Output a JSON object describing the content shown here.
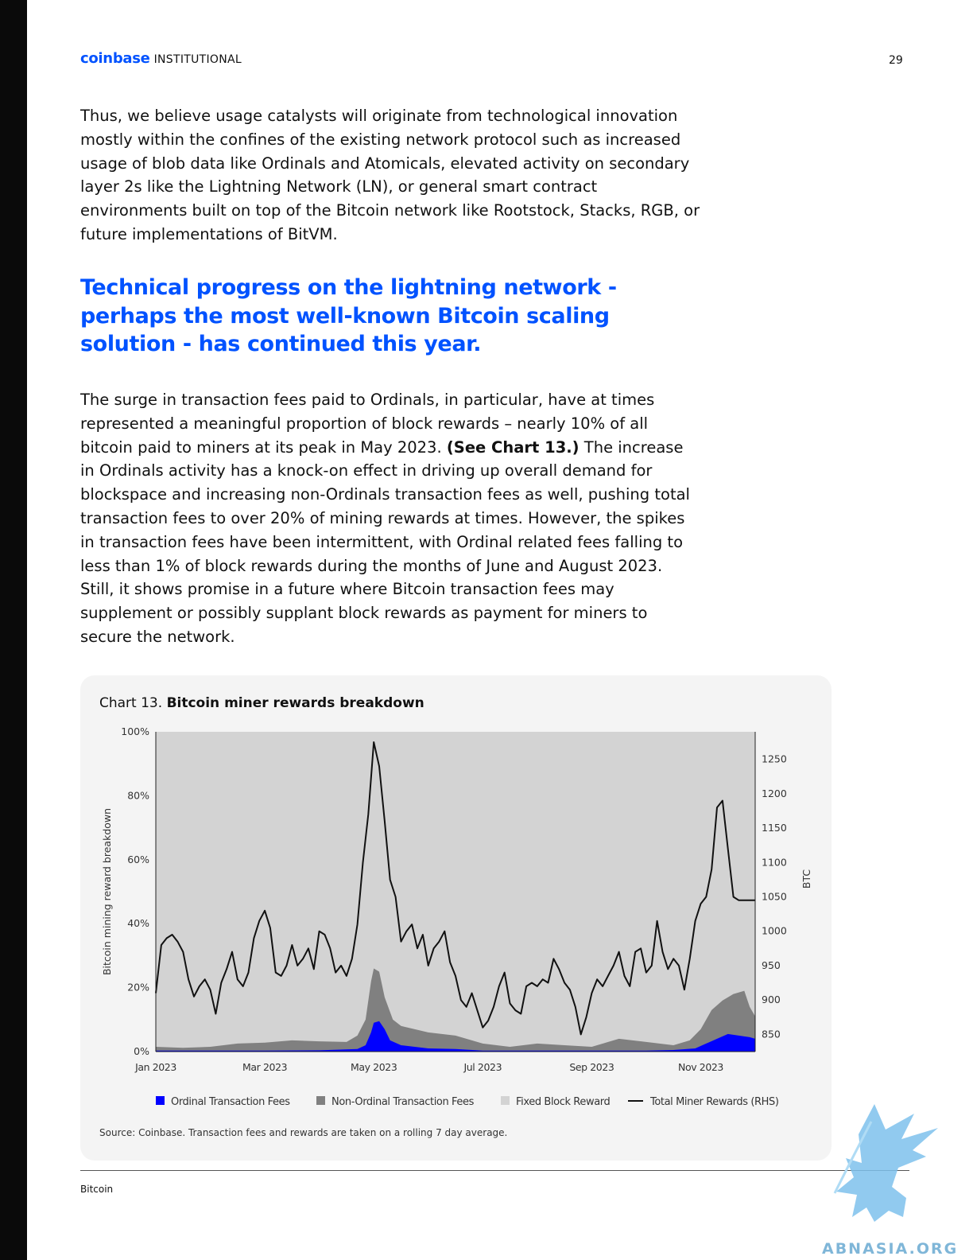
{
  "header": {
    "brand": "coinbase",
    "brand_suffix": "INSTITUTIONAL",
    "page_number": "29"
  },
  "intro_paragraph": "Thus, we believe usage catalysts will originate from technological innovation mostly within the confines of the existing network protocol such as increased usage of blob data like Ordinals and Atomicals, elevated activity on secondary layer 2s like the Lightning Network (LN), or general smart contract environments built on top of the Bitcoin network like Rootstock, Stacks, RGB, or future implementations of BitVM.",
  "section_heading": "Technical progress on the lightning network - perhaps the most well-known Bitcoin scaling solution - has continued this year.",
  "body_paragraph": {
    "part1": "The surge in transaction fees paid to Ordinals, in particular, have at times represented a meaningful proportion of block rewards – nearly 10% of all bitcoin paid to miners at its peak in May 2023. ",
    "bold": "(See Chart 13.)",
    "part2": " The increase in Ordinals activity has a knock-on effect in driving up overall demand for blockspace and increasing non-Ordinals transaction fees as well, pushing total transaction fees to over 20% of mining rewards at times. However, the spikes in transaction fees have been intermittent, with Ordinal related fees falling to less than 1% of block rewards during the months of June and August 2023. Still, it shows promise in a future where Bitcoin transaction fees may supplement or possibly supplant block rewards as payment for miners to secure the network."
  },
  "chart_card": {
    "label": "Chart 13.",
    "title": "Bitcoin miner rewards breakdown",
    "source": "Source: Coinbase. Transaction fees and rewards are taken on a rolling 7 day average."
  },
  "chart_data": {
    "type": "area",
    "ylabel": "Bitcoin mining reward breakdown",
    "y2label": "BTC",
    "ylim": [
      0,
      100
    ],
    "y_ticks": [
      "0%",
      "20%",
      "40%",
      "60%",
      "80%",
      "100%"
    ],
    "y2lim": [
      825,
      1290
    ],
    "y2_ticks": [
      850,
      900,
      950,
      1000,
      1050,
      1100,
      1150,
      1200,
      1250
    ],
    "x_ticks": [
      "Jan 2023",
      "Mar 2023",
      "May 2023",
      "Jul 2023",
      "Sep 2023",
      "Nov 2023"
    ],
    "x_tick_positions": [
      0,
      2,
      4,
      6,
      8,
      10
    ],
    "x_max": 11.0,
    "grid": false,
    "legend_position": "bottom",
    "colors": {
      "ordinal": "#0000ff",
      "non_ordinal": "#808080",
      "fixed": "#d3d3d3",
      "total": "#111111"
    },
    "series": [
      {
        "name": "Ordinal Transaction Fees",
        "unit": "% of rewards",
        "x": [
          0,
          1.0,
          2.0,
          3.0,
          3.7,
          3.85,
          3.95,
          4.0,
          4.1,
          4.2,
          4.3,
          4.5,
          5.0,
          5.5,
          6.0,
          6.5,
          7.0,
          7.5,
          8.0,
          8.5,
          9.0,
          9.5,
          9.9,
          10.1,
          10.3,
          10.5,
          10.7,
          10.9,
          11.0
        ],
        "values": [
          0.3,
          0.3,
          0.3,
          0.4,
          0.8,
          2.0,
          6.0,
          9.0,
          9.5,
          7.0,
          3.5,
          2.0,
          1.0,
          0.8,
          0.3,
          0.3,
          0.3,
          0.3,
          0.3,
          0.3,
          0.3,
          0.5,
          1.0,
          2.5,
          4.0,
          5.5,
          5.0,
          4.5,
          4.0
        ]
      },
      {
        "name": "Non-Ordinal Transaction Fees",
        "unit": "% of rewards (cumulative top)",
        "x": [
          0,
          0.5,
          1.0,
          1.5,
          2.0,
          2.5,
          3.0,
          3.5,
          3.7,
          3.85,
          3.95,
          4.0,
          4.1,
          4.2,
          4.35,
          4.5,
          5.0,
          5.5,
          6.0,
          6.5,
          7.0,
          7.5,
          8.0,
          8.5,
          9.0,
          9.5,
          9.8,
          10.0,
          10.2,
          10.4,
          10.6,
          10.8,
          10.9,
          11.0
        ],
        "values": [
          1.5,
          1.2,
          1.5,
          2.5,
          2.8,
          3.5,
          3.2,
          3.0,
          5.0,
          10.0,
          22.0,
          26.0,
          25.0,
          17.0,
          10.0,
          8.0,
          6.0,
          5.0,
          2.5,
          1.5,
          2.5,
          2.0,
          1.5,
          4.0,
          3.0,
          2.0,
          3.5,
          7.0,
          13.0,
          16.0,
          18.0,
          19.0,
          14.0,
          11.0
        ]
      },
      {
        "name": "Fixed Block Reward",
        "unit": "% of rewards (remainder to 100%)"
      },
      {
        "name": "Total Miner Rewards (RHS)",
        "unit": "BTC",
        "x": [
          0,
          0.1,
          0.2,
          0.3,
          0.4,
          0.5,
          0.6,
          0.7,
          0.8,
          0.9,
          1.0,
          1.1,
          1.2,
          1.3,
          1.4,
          1.5,
          1.6,
          1.7,
          1.8,
          1.9,
          2.0,
          2.1,
          2.2,
          2.3,
          2.4,
          2.5,
          2.6,
          2.7,
          2.8,
          2.9,
          3.0,
          3.1,
          3.2,
          3.3,
          3.4,
          3.5,
          3.6,
          3.7,
          3.8,
          3.9,
          4.0,
          4.1,
          4.2,
          4.3,
          4.4,
          4.5,
          4.6,
          4.7,
          4.8,
          4.9,
          5.0,
          5.1,
          5.2,
          5.3,
          5.4,
          5.5,
          5.6,
          5.7,
          5.8,
          5.9,
          6.0,
          6.1,
          6.2,
          6.3,
          6.4,
          6.5,
          6.6,
          6.7,
          6.8,
          6.9,
          7.0,
          7.1,
          7.2,
          7.3,
          7.4,
          7.5,
          7.6,
          7.7,
          7.8,
          7.9,
          8.0,
          8.1,
          8.2,
          8.3,
          8.4,
          8.5,
          8.6,
          8.7,
          8.8,
          8.9,
          9.0,
          9.1,
          9.2,
          9.3,
          9.4,
          9.5,
          9.6,
          9.7,
          9.8,
          9.9,
          10.0,
          10.1,
          10.2,
          10.3,
          10.4,
          10.5,
          10.6,
          10.7,
          10.8,
          10.9,
          11.0
        ],
        "values": [
          910,
          980,
          990,
          995,
          985,
          970,
          930,
          905,
          920,
          930,
          915,
          880,
          925,
          945,
          970,
          930,
          920,
          940,
          990,
          1015,
          1030,
          1005,
          940,
          935,
          950,
          980,
          950,
          960,
          975,
          945,
          1000,
          995,
          975,
          940,
          950,
          935,
          960,
          1010,
          1100,
          1170,
          1275,
          1240,
          1160,
          1075,
          1050,
          985,
          1000,
          1010,
          975,
          995,
          950,
          975,
          985,
          1000,
          955,
          935,
          900,
          890,
          910,
          885,
          860,
          870,
          890,
          920,
          940,
          895,
          885,
          880,
          920,
          925,
          920,
          930,
          925,
          960,
          945,
          925,
          915,
          890,
          850,
          875,
          910,
          930,
          920,
          935,
          950,
          970,
          935,
          920,
          970,
          975,
          940,
          950,
          1015,
          970,
          945,
          960,
          950,
          915,
          960,
          1015,
          1040,
          1050,
          1090,
          1180,
          1190,
          1120,
          1050,
          1045,
          1045,
          1045,
          1045
        ]
      }
    ]
  },
  "legend": {
    "ordinal": "Ordinal Transaction Fees",
    "non_ordinal": "Non-Ordinal Transaction Fees",
    "fixed": "Fixed Block Reward",
    "total": "Total Miner Rewards (RHS)"
  },
  "footer": {
    "label": "Bitcoin"
  },
  "watermark": {
    "text": "ABNASIA.ORG"
  }
}
